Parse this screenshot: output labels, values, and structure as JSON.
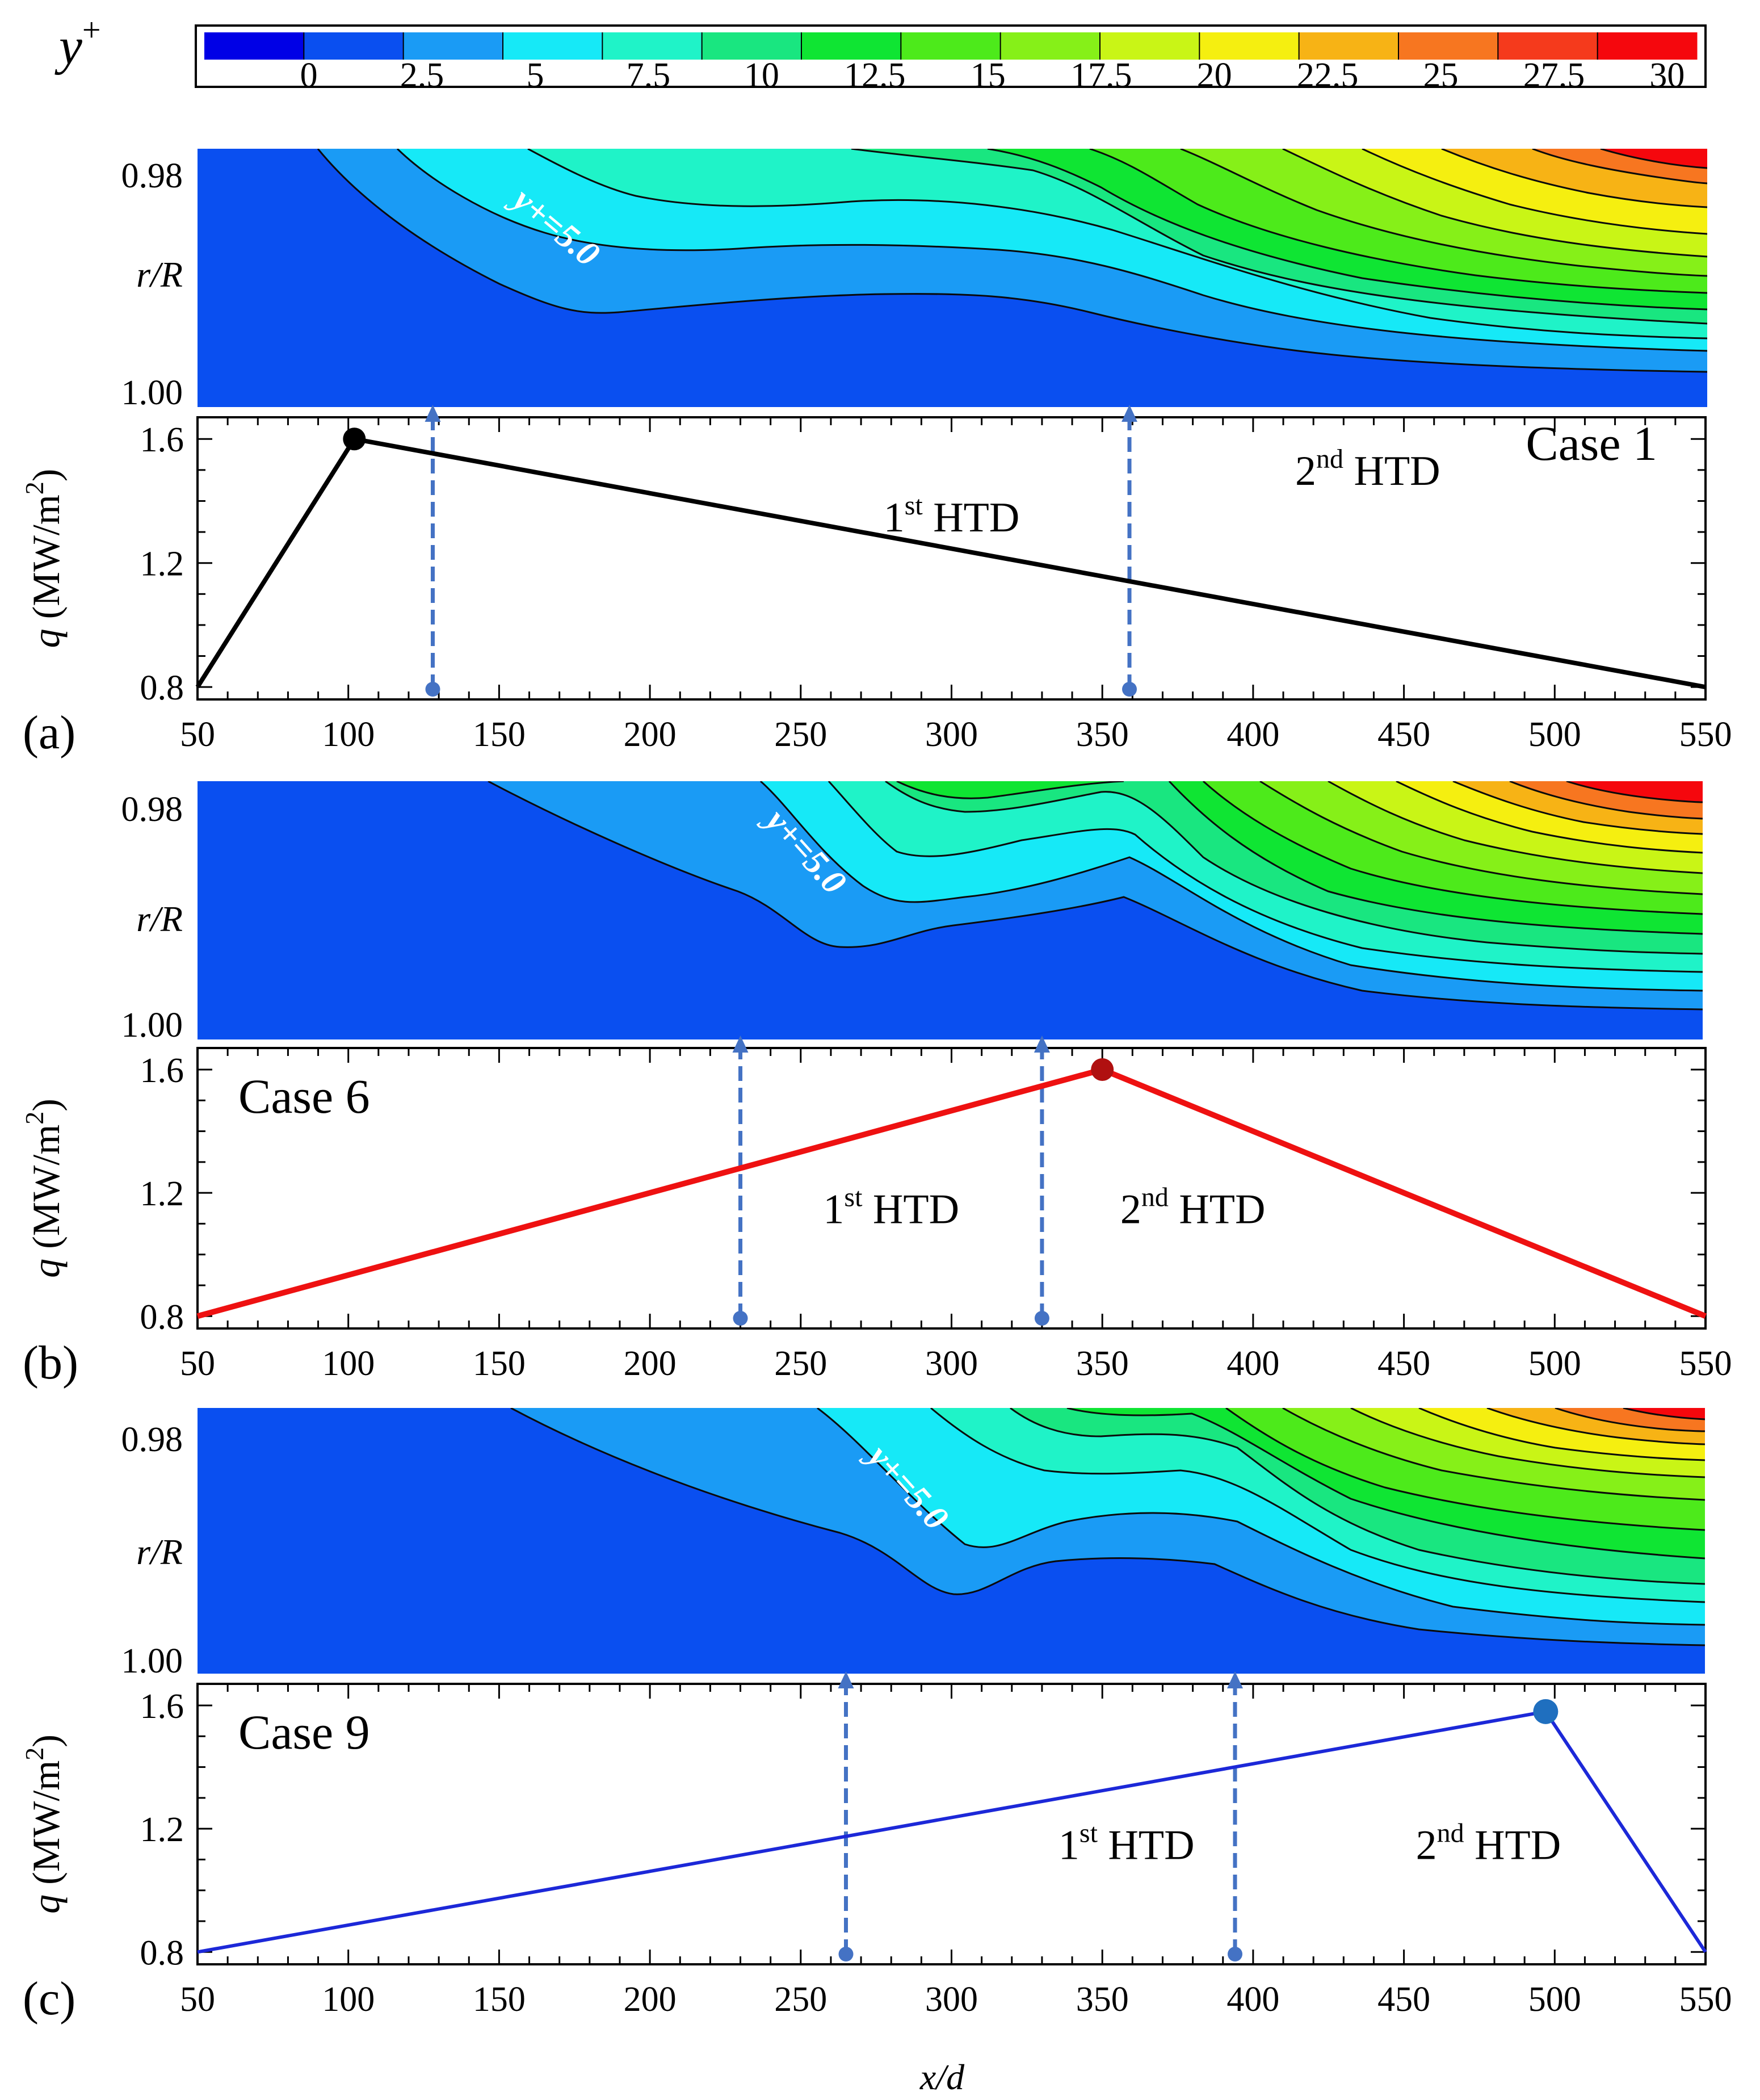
{
  "colors": {
    "bands": [
      "#0000e6",
      "#0a4ff0",
      "#1a9bf5",
      "#16e9f7",
      "#1ff3c8",
      "#19e680",
      "#0fe533",
      "#4dea1b",
      "#86f018",
      "#c9f516",
      "#f5ef10",
      "#f7b315",
      "#f77620",
      "#f53a1c",
      "#f5070d"
    ],
    "low_band": "#0a4ff0",
    "mid_band": "#1a9bf5",
    "arrow": "#4472c4",
    "case_colors": [
      "#000000",
      "#ee1111",
      "#1c28d8"
    ],
    "peak_markers": [
      "#000000",
      "#b01010",
      "#1f6fbf"
    ]
  },
  "colorbar": {
    "title_base": "y",
    "title_sup": "+",
    "levels": [
      "0",
      "2.5",
      "5",
      "7.5",
      "10",
      "12.5",
      "15",
      "17.5",
      "20",
      "22.5",
      "25",
      "27.5",
      "30"
    ]
  },
  "contour_axis": {
    "ylabel_r": "r",
    "ylabel_R": "/R",
    "ticks": [
      "0.98",
      "1.00"
    ]
  },
  "q_axis": {
    "ylabel_q": "q",
    "ylabel_units": " (MW/m",
    "ylabel_sup": "2",
    "ylabel_close": ")",
    "ticks": [
      "0.8",
      "1.2",
      "1.6"
    ]
  },
  "x_axis": {
    "ticks": [
      "50",
      "100",
      "150",
      "200",
      "250",
      "300",
      "350",
      "400",
      "450",
      "500",
      "550"
    ],
    "label": "x/d"
  },
  "htd_labels": {
    "first_num": "1",
    "first_sup": "st",
    "second_num": "2",
    "second_sup": "nd",
    "suffix": " HTD"
  },
  "panels": [
    {
      "letter": "(a)",
      "case": "Case 1",
      "annotation": "y+=5.0",
      "contour_line": "y+=5.0"
    },
    {
      "letter": "(b)",
      "case": "Case 6",
      "annotation": "y+=5.0",
      "contour_line": "y+=5.0"
    },
    {
      "letter": "(c)",
      "case": "Case 9",
      "annotation": "y+=5.0",
      "contour_line": "y+=5.0"
    }
  ],
  "chart_data": [
    {
      "type": "line",
      "title": "Case 1",
      "xlabel": "x/d",
      "ylabel": "q (MW/m2)",
      "xlim": [
        50,
        550
      ],
      "ylim": [
        0.76,
        1.67
      ],
      "x": [
        50,
        102,
        550
      ],
      "y": [
        0.8,
        1.6,
        0.8
      ],
      "peak": {
        "x": 102,
        "y": 1.6
      },
      "htd_locations": [
        128,
        359
      ],
      "htd_text_positions": [
        [
          300,
          1.35
        ],
        [
          438,
          1.5
        ]
      ]
    },
    {
      "type": "line",
      "title": "Case 6",
      "xlabel": "x/d",
      "ylabel": "q (MW/m2)",
      "xlim": [
        50,
        550
      ],
      "ylim": [
        0.76,
        1.67
      ],
      "x": [
        50,
        350,
        550
      ],
      "y": [
        0.8,
        1.6,
        0.8
      ],
      "peak": {
        "x": 350,
        "y": 1.6
      },
      "htd_locations": [
        230,
        330
      ],
      "htd_text_positions": [
        [
          280,
          1.15
        ],
        [
          380,
          1.15
        ]
      ]
    },
    {
      "type": "line",
      "title": "Case 9",
      "xlabel": "x/d",
      "ylabel": "q (MW/m2)",
      "xlim": [
        50,
        550
      ],
      "ylim": [
        0.76,
        1.67
      ],
      "x": [
        50,
        497,
        550
      ],
      "y": [
        0.8,
        1.58,
        0.8
      ],
      "peak": {
        "x": 497,
        "y": 1.58
      },
      "htd_locations": [
        265,
        394
      ],
      "htd_text_positions": [
        [
          358,
          1.15
        ],
        [
          478,
          1.15
        ]
      ]
    }
  ]
}
